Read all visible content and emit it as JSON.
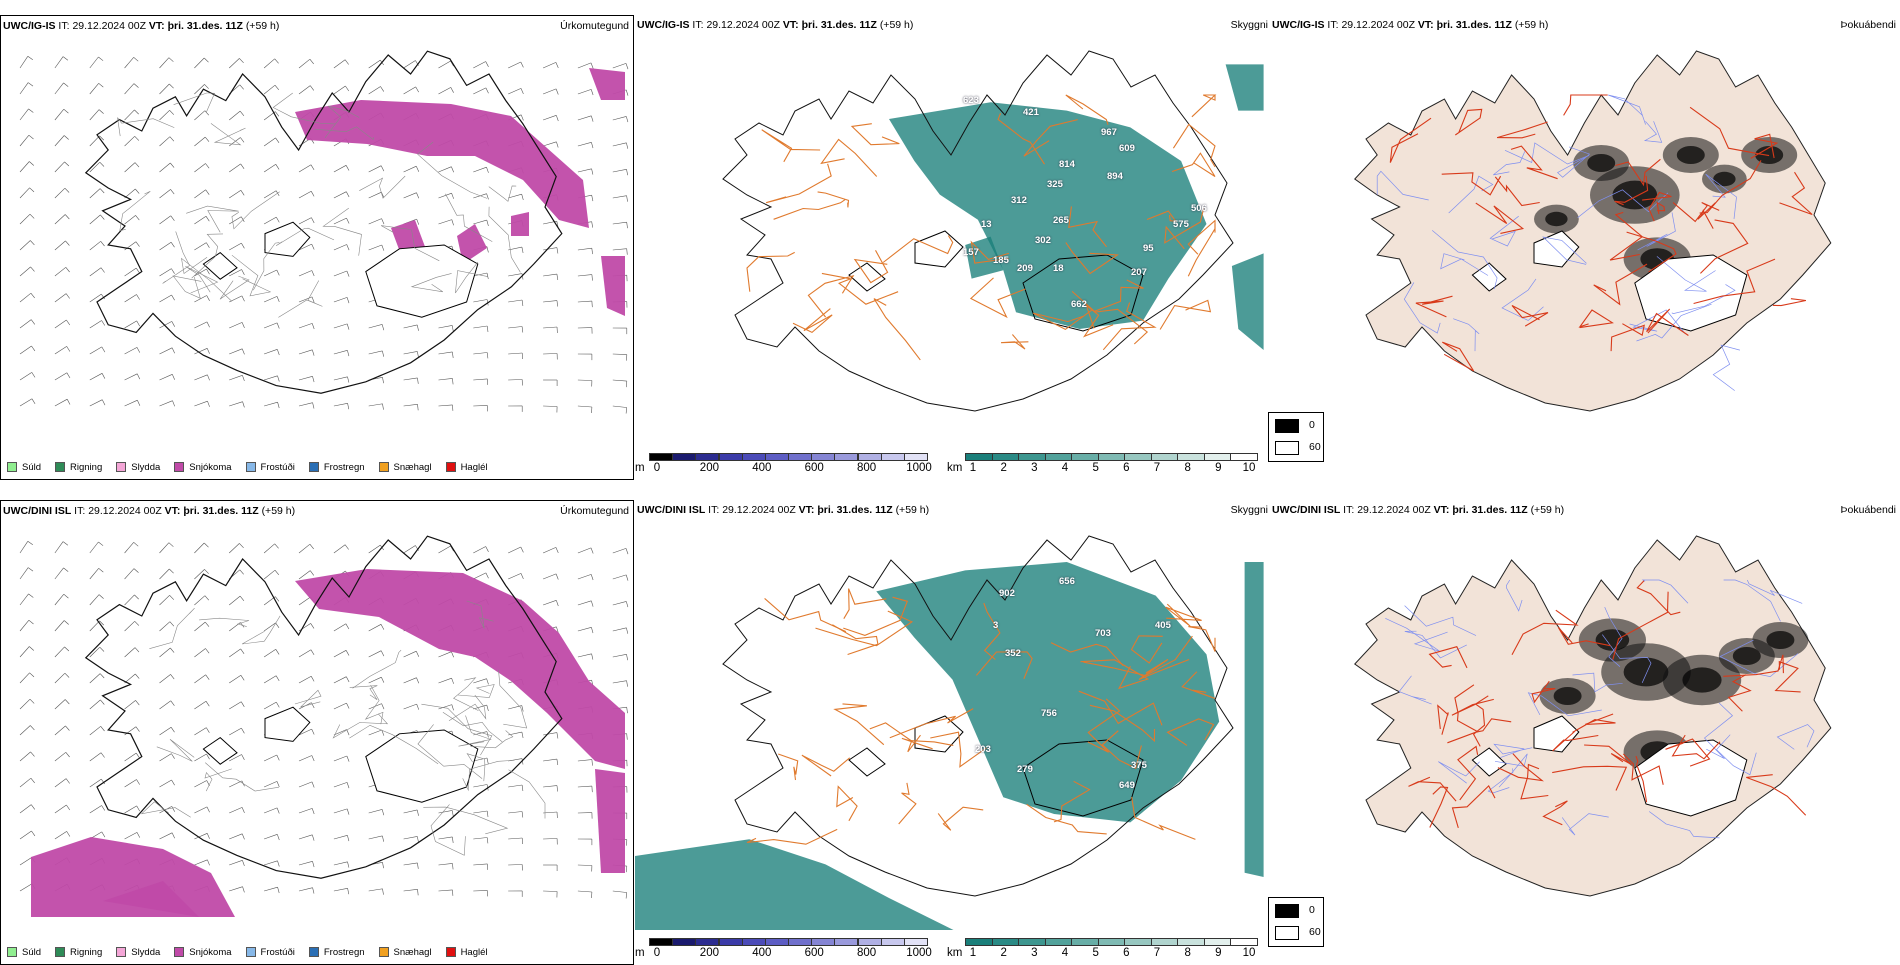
{
  "rows": [
    {
      "model": "UWC/IG-IS",
      "it_label": "IT:",
      "it_value": "29.12.2024 00Z",
      "vt_label": "VT:",
      "vt_value": "þri. 31.des. 11Z",
      "offset": "(+59 h)",
      "cloud_labels": [
        "623",
        "421",
        "967",
        "609",
        "814",
        "894",
        "325",
        "312",
        "506",
        "575",
        "265",
        "302",
        "95",
        "157",
        "185",
        "209",
        "18",
        "207",
        "662",
        "13"
      ]
    },
    {
      "model": "UWC/DINI ISL",
      "it_label": "IT:",
      "it_value": "29.12.2024 00Z",
      "vt_label": "VT:",
      "vt_value": "þri. 31.des. 11Z",
      "offset": "(+59 h)",
      "cloud_labels": [
        "902",
        "656",
        "703",
        "352",
        "405",
        "756",
        "203",
        "279",
        "375",
        "649",
        "3"
      ]
    }
  ],
  "panel_titles": {
    "precip": "Úrkomutegund",
    "cloud": "Skyggni",
    "fog": "Þokuábendi"
  },
  "precip_legend": [
    {
      "label": "Súld",
      "color": "#90ee90"
    },
    {
      "label": "Rigning",
      "color": "#2e8b57"
    },
    {
      "label": "Slydda",
      "color": "#f4a6d7"
    },
    {
      "label": "Snjókoma",
      "color": "#c04aa8"
    },
    {
      "label": "Frostúði",
      "color": "#87b8e8"
    },
    {
      "label": "Frostregn",
      "color": "#2a6fb5"
    },
    {
      "label": "Snæhagl",
      "color": "#f0a020"
    },
    {
      "label": "Haglél",
      "color": "#e01010"
    }
  ],
  "cloud_base_bar": {
    "unit": "m",
    "ticks": [
      "0",
      "200",
      "400",
      "600",
      "800",
      "1000"
    ],
    "colors": [
      "#000000",
      "#1a1a6e",
      "#2c2c90",
      "#3b3ba8",
      "#4b4bb8",
      "#5d5dc4",
      "#7070cc",
      "#8585d4",
      "#9a9adc",
      "#b0b0e4",
      "#c8c8ee",
      "#e2e2f6"
    ]
  },
  "visibility_bar": {
    "unit": "km",
    "ticks": [
      "1",
      "2",
      "3",
      "4",
      "5",
      "6",
      "7",
      "8",
      "9",
      "10"
    ],
    "colors": [
      "#1a7f7a",
      "#2a8a85",
      "#3d968f",
      "#52a29b",
      "#68aea7",
      "#7fbab3",
      "#97c7c0",
      "#b0d4ce",
      "#c9e2dd",
      "#e3f0ed",
      "#ffffff"
    ]
  },
  "fog_scale": {
    "min_label": "0",
    "max_label": "60",
    "min_color": "#000000",
    "max_color": "#ffffff"
  },
  "colors": {
    "snow": "#c04aa8",
    "teal": "#1a7f7a",
    "roads": "#e07a2e",
    "fog_land": "#f2e3d8",
    "fog_roads": "#d83a1a",
    "rivers": "#7f8ff0"
  }
}
